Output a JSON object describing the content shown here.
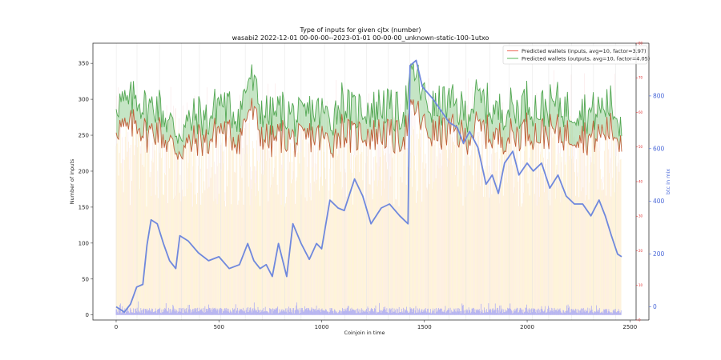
{
  "chart_data": {
    "type": "line",
    "title": "Type of inputs for given cjtx (number)",
    "subtitle": "wasabi2 2022-12-01 00-00-00--2023-01-01 00-00-00_unknown-static-100-1utxo",
    "xlabel": "Coinjoin in time",
    "ylabel": "Number of inputs",
    "y2label": "btc in mix",
    "xlim": [
      -113,
      2530
    ],
    "ylim": [
      -7,
      378
    ],
    "y_red_lim": [
      0,
      80
    ],
    "y_blue_lim": [
      -50,
      1000
    ],
    "x_ticks": [
      "0",
      "500",
      "1000",
      "1500",
      "2000",
      "2500"
    ],
    "x_tick_values": [
      0,
      500,
      1000,
      1500,
      2000,
      2500
    ],
    "y_ticks": [
      "0",
      "50",
      "100",
      "150",
      "200",
      "250",
      "300",
      "350"
    ],
    "y_tick_values": [
      0,
      50,
      100,
      150,
      200,
      250,
      300,
      350
    ],
    "y_red_ticks": [
      "0",
      "10",
      "20",
      "30",
      "40",
      "50",
      "60",
      "70",
      "80"
    ],
    "y_red_tick_values": [
      0,
      10,
      20,
      30,
      40,
      50,
      60,
      70,
      80
    ],
    "y_blue_ticks": [
      "0",
      "200",
      "400",
      "600",
      "800"
    ],
    "y_blue_tick_values": [
      0,
      200,
      400,
      600,
      800
    ],
    "grid": true,
    "legend": {
      "placement": "top-right",
      "entries": [
        {
          "label": "Predicted wallets (inputs, avg=10, factor=3.97)",
          "color": "#f08070"
        },
        {
          "label": "Predicted wallets (outputs, avg=10, factor=4.05)",
          "color": "#70c070"
        }
      ]
    },
    "series": [
      {
        "name": "btc in mix",
        "axis": "blue",
        "color": "#6f88dd",
        "x": [
          0,
          40,
          70,
          100,
          130,
          150,
          170,
          200,
          230,
          260,
          290,
          310,
          350,
          400,
          450,
          500,
          550,
          600,
          640,
          670,
          700,
          730,
          760,
          790,
          830,
          860,
          900,
          940,
          975,
          1000,
          1040,
          1080,
          1110,
          1160,
          1200,
          1240,
          1290,
          1330,
          1380,
          1420,
          1430,
          1460,
          1490,
          1540,
          1580,
          1620,
          1660,
          1690,
          1720,
          1760,
          1800,
          1830,
          1860,
          1890,
          1930,
          1960,
          2000,
          2030,
          2070,
          2110,
          2150,
          2190,
          2230,
          2270,
          2310,
          2350,
          2380,
          2410,
          2440,
          2460
        ],
        "y": [
          0,
          -20,
          10,
          75,
          85,
          235,
          330,
          315,
          240,
          175,
          145,
          270,
          250,
          205,
          175,
          190,
          145,
          160,
          240,
          175,
          145,
          160,
          115,
          240,
          115,
          315,
          240,
          180,
          240,
          220,
          405,
          375,
          365,
          485,
          420,
          315,
          375,
          390,
          345,
          315,
          915,
          935,
          835,
          790,
          745,
          700,
          680,
          620,
          665,
          605,
          465,
          500,
          430,
          545,
          590,
          500,
          545,
          515,
          545,
          450,
          500,
          420,
          390,
          390,
          345,
          405,
          345,
          270,
          200,
          190
        ]
      },
      {
        "name": "Predicted wallets (outputs, avg=10, factor=4.05)",
        "axis": "left",
        "color": "#3a9a3a",
        "x": [
          0,
          50,
          100,
          150,
          200,
          250,
          300,
          350,
          400,
          450,
          500,
          550,
          600,
          650,
          700,
          750,
          800,
          850,
          900,
          950,
          1000,
          1050,
          1100,
          1150,
          1200,
          1250,
          1300,
          1350,
          1400,
          1450,
          1500,
          1550,
          1600,
          1650,
          1700,
          1750,
          1800,
          1850,
          1900,
          1950,
          2000,
          2050,
          2100,
          2150,
          2200,
          2250,
          2300,
          2350,
          2400,
          2450
        ],
        "y": [
          300,
          290,
          305,
          285,
          295,
          270,
          255,
          265,
          280,
          270,
          300,
          285,
          280,
          335,
          290,
          275,
          285,
          280,
          270,
          285,
          280,
          275,
          300,
          280,
          290,
          285,
          295,
          280,
          285,
          340,
          300,
          285,
          295,
          290,
          280,
          300,
          295,
          280,
          290,
          285,
          300,
          285,
          290,
          295,
          285,
          290,
          280,
          285,
          295,
          270
        ]
      },
      {
        "name": "Predicted wallets (inputs, avg=10, factor=3.97)",
        "axis": "left",
        "color": "#c0603a",
        "x": [
          0,
          50,
          100,
          150,
          200,
          250,
          300,
          350,
          400,
          450,
          500,
          550,
          600,
          650,
          700,
          750,
          800,
          850,
          900,
          950,
          1000,
          1050,
          1100,
          1150,
          1200,
          1250,
          1300,
          1350,
          1400,
          1450,
          1500,
          1550,
          1600,
          1650,
          1700,
          1750,
          1800,
          1850,
          1900,
          1950,
          2000,
          2050,
          2100,
          2150,
          2200,
          2250,
          2300,
          2350,
          2400,
          2450
        ],
        "y": [
          265,
          255,
          270,
          250,
          260,
          240,
          230,
          235,
          245,
          240,
          260,
          250,
          245,
          290,
          255,
          240,
          250,
          245,
          240,
          250,
          245,
          240,
          260,
          245,
          255,
          250,
          255,
          245,
          250,
          290,
          260,
          250,
          255,
          255,
          245,
          260,
          255,
          245,
          250,
          250,
          260,
          250,
          255,
          255,
          250,
          255,
          245,
          250,
          260,
          245
        ]
      }
    ]
  }
}
